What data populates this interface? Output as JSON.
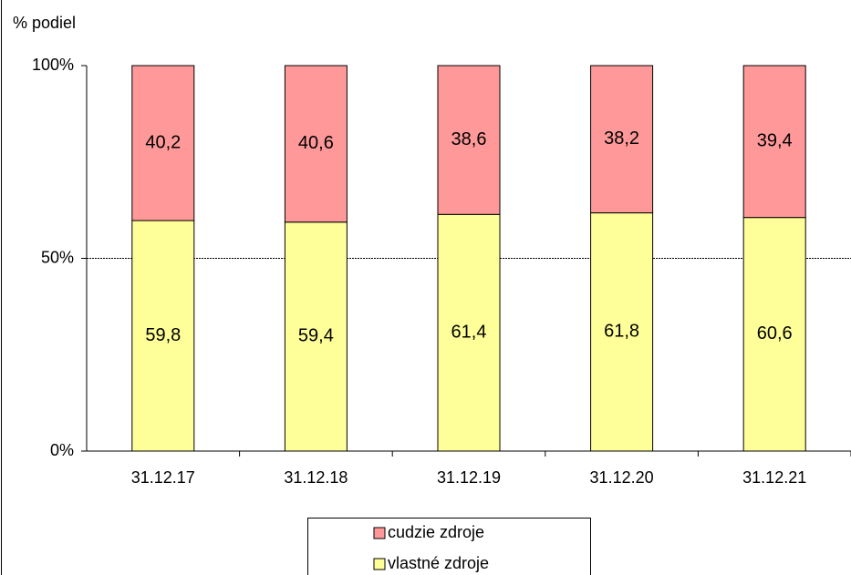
{
  "chart_data": {
    "type": "stacked_bar",
    "y_axis_label": "% podiel",
    "categories": [
      "31.12.17",
      "31.12.18",
      "31.12.19",
      "31.12.20",
      "31.12.21"
    ],
    "series": [
      {
        "name": "vlastné zdroje",
        "color": "#ffff99",
        "values": [
          59.8,
          59.4,
          61.4,
          61.8,
          60.6
        ],
        "value_labels": [
          "59,8",
          "59,4",
          "61,4",
          "61,8",
          "60,6"
        ]
      },
      {
        "name": "cudzie zdroje",
        "color": "#ff9999",
        "values": [
          40.2,
          40.6,
          38.6,
          38.2,
          39.4
        ],
        "value_labels": [
          "40,2",
          "40,6",
          "38,6",
          "38,2",
          "39,4"
        ]
      }
    ],
    "ylim": [
      0,
      100
    ],
    "yticks": [
      {
        "value": 0,
        "label": "0%"
      },
      {
        "value": 50,
        "label": "50%"
      },
      {
        "value": 100,
        "label": "100%"
      }
    ],
    "grid": true
  }
}
